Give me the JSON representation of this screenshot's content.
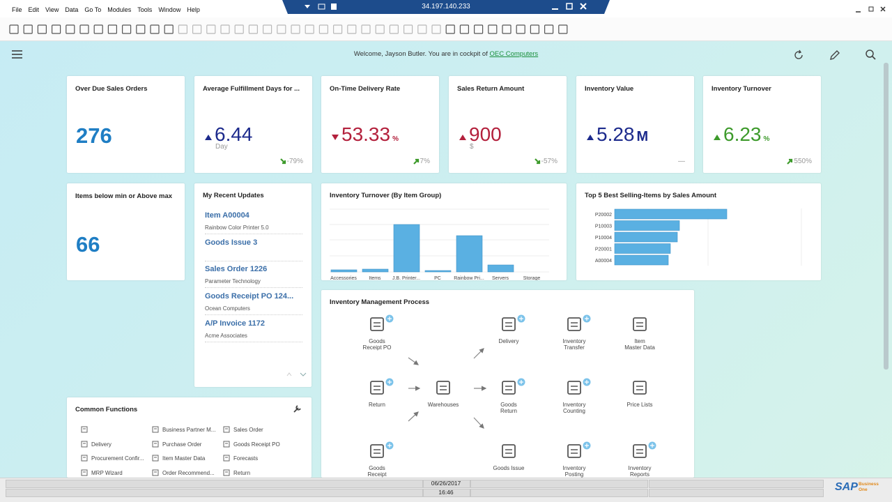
{
  "titlebar": {
    "address": "34.197.140.233"
  },
  "menu": [
    "File",
    "Edit",
    "View",
    "Data",
    "Go To",
    "Modules",
    "Tools",
    "Window",
    "Help"
  ],
  "header": {
    "welcome": "Welcome, Jayson Butler. You are in cockpit of",
    "company": "OEC Computers"
  },
  "kpis": [
    {
      "title": "Over Due Sales Orders",
      "value": "276",
      "color": "#1f7ec4"
    },
    {
      "title": "Average Fulfillment Days for ...",
      "value": "6.44",
      "unit": "Day",
      "unit_position": "below",
      "trend": "up",
      "color": "#1c2a8c",
      "change": "-79%",
      "change_trend": "down"
    },
    {
      "title": "On-Time Delivery Rate",
      "value": "53.33",
      "unit": "%",
      "unit_position": "inline",
      "trend": "down",
      "color": "#b3203c",
      "change": "7%",
      "change_trend": "up"
    },
    {
      "title": "Sales Return Amount",
      "value": "900",
      "unit": "$",
      "unit_position": "below",
      "trend": "up",
      "color": "#b3203c",
      "change": "-57%",
      "change_trend": "down"
    },
    {
      "title": "Inventory Value",
      "value": "5.28",
      "unit": "M",
      "unit_position": "inline",
      "trend": "up",
      "color": "#1c2a8c",
      "change": "—"
    },
    {
      "title": "Inventory Turnover",
      "value": "6.23",
      "unit": "%",
      "unit_position": "inline",
      "trend": "up",
      "color": "#3d9a2b",
      "change": "550%",
      "change_trend": "up"
    }
  ],
  "stock_alert": {
    "title": "Items below min or Above max",
    "value": "66"
  },
  "recent_updates": {
    "title": "My Recent Updates",
    "items": [
      {
        "title": "Item A00004",
        "subtitle": "Rainbow Color Printer 5.0"
      },
      {
        "title": "Goods Issue 3"
      },
      {
        "title": "Sales Order 1226",
        "subtitle": "Parameter Technology"
      },
      {
        "title": "Goods Receipt PO 124...",
        "subtitle": "Ocean Computers"
      },
      {
        "title": "A/P Invoice 1172",
        "subtitle": "Acme Associates"
      }
    ]
  },
  "turnover_chart": {
    "type": "bar",
    "title": "Inventory Turnover (By Item Group)",
    "categories": [
      "Accessories",
      "Items",
      "J.B. Printer...",
      "PC",
      "Rainbow Pri...",
      "Servers",
      "Storage"
    ],
    "values": [
      3,
      4,
      68,
      2,
      52,
      10,
      0
    ],
    "color": "#5ab0e2"
  },
  "top_items_chart": {
    "type": "hbar",
    "title": "Top 5 Best Selling-Items by Sales Amount",
    "categories": [
      "P20002",
      "P10003",
      "P10004",
      "P20001",
      "A00004"
    ],
    "values": [
      161,
      93,
      90,
      80,
      77
    ],
    "color": "#5ab0e2"
  },
  "process": {
    "title": "Inventory Management Process",
    "nodes": [
      "Goods\nReceipt PO",
      "Delivery",
      "Inventory\nTransfer",
      "Item\nMaster Data",
      "Return",
      "Warehouses",
      "Goods\nReturn",
      "Inventory\nCounting",
      "Price Lists",
      "Goods\nReceipt",
      "Goods Issue",
      "Inventory\nPosting",
      "Inventory\nReports"
    ]
  },
  "common_functions": {
    "title": "Common Functions",
    "columns": [
      [
        "Delivery",
        "Procurement Confir...",
        "MRP Wizard"
      ],
      [
        "Business Partner M...",
        "Purchase Order",
        "Item Master Data",
        "Order Recommend..."
      ],
      [
        "Sales Order",
        "Goods Receipt PO",
        "Forecasts",
        "Return"
      ]
    ]
  },
  "status": {
    "date": "06/26/2017",
    "time": "16:46"
  },
  "logo": {
    "brand": "SAP",
    "product": "Business One"
  }
}
